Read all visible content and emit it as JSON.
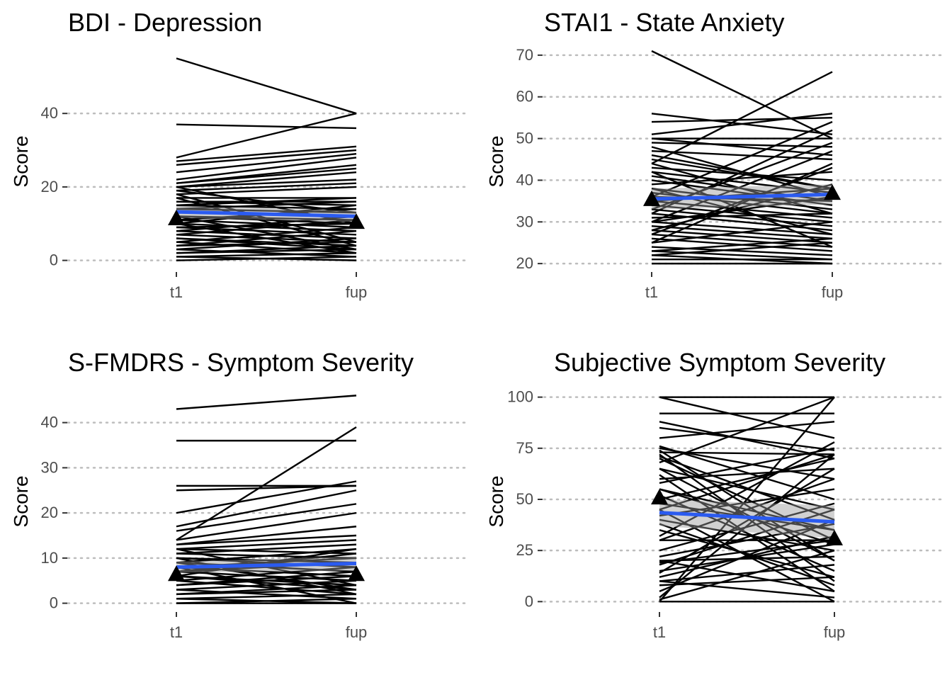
{
  "chart_data": [
    {
      "type": "line",
      "title": "BDI - Depression",
      "ylabel": "Score",
      "xlabel": "",
      "categories": [
        "t1",
        "fup"
      ],
      "ylim": [
        -2,
        57
      ],
      "yticks": [
        0,
        20,
        40
      ],
      "grid": "horizontal dotted",
      "subjects": [
        [
          55,
          40
        ],
        [
          37,
          36
        ],
        [
          28,
          40
        ],
        [
          27,
          31
        ],
        [
          26,
          30
        ],
        [
          24,
          29
        ],
        [
          22,
          28
        ],
        [
          21,
          26
        ],
        [
          21,
          25
        ],
        [
          20,
          24
        ],
        [
          20,
          22
        ],
        [
          19,
          21
        ],
        [
          18,
          20
        ],
        [
          17,
          17
        ],
        [
          16,
          16
        ],
        [
          16,
          15
        ],
        [
          15,
          17
        ],
        [
          15,
          14
        ],
        [
          14,
          16
        ],
        [
          14,
          13
        ],
        [
          13,
          12
        ],
        [
          12,
          11
        ],
        [
          12,
          10
        ],
        [
          11,
          9
        ],
        [
          10,
          15
        ],
        [
          10,
          8
        ],
        [
          9,
          7
        ],
        [
          9,
          10
        ],
        [
          8,
          6
        ],
        [
          8,
          12
        ],
        [
          7,
          5
        ],
        [
          7,
          11
        ],
        [
          6,
          4
        ],
        [
          6,
          3
        ],
        [
          5,
          9
        ],
        [
          5,
          2
        ],
        [
          4,
          8
        ],
        [
          4,
          5
        ],
        [
          3,
          1
        ],
        [
          3,
          6
        ],
        [
          2,
          3
        ],
        [
          2,
          4
        ],
        [
          1,
          2
        ],
        [
          1,
          0
        ],
        [
          0,
          1
        ],
        [
          20,
          10
        ],
        [
          18,
          5
        ],
        [
          12,
          3
        ],
        [
          11,
          14
        ],
        [
          10,
          2
        ],
        [
          17,
          4
        ],
        [
          19,
          13
        ]
      ],
      "trend": [
        13.2,
        12.0
      ],
      "ci": [
        [
          11.6,
          14.8
        ],
        [
          10.5,
          13.5
        ]
      ],
      "means": [
        11.5,
        10.5
      ]
    },
    {
      "type": "line",
      "title": "STAI1 - State Anxiety",
      "ylabel": "Score",
      "xlabel": "",
      "categories": [
        "t1",
        "fup"
      ],
      "ylim": [
        19,
        71
      ],
      "yticks": [
        20,
        30,
        40,
        50,
        60,
        70
      ],
      "grid": "horizontal dotted",
      "subjects": [
        [
          71,
          50
        ],
        [
          56,
          51
        ],
        [
          54,
          55
        ],
        [
          51,
          56
        ],
        [
          50,
          50
        ],
        [
          50,
          46
        ],
        [
          49,
          48
        ],
        [
          48,
          36
        ],
        [
          47,
          45
        ],
        [
          46,
          38
        ],
        [
          45,
          38
        ],
        [
          44,
          66
        ],
        [
          43,
          40
        ],
        [
          42,
          37
        ],
        [
          41,
          35
        ],
        [
          40,
          34
        ],
        [
          39,
          42
        ],
        [
          38,
          33
        ],
        [
          37,
          32
        ],
        [
          36,
          35
        ],
        [
          35,
          31
        ],
        [
          34,
          30
        ],
        [
          33,
          29
        ],
        [
          32,
          28
        ],
        [
          31,
          32
        ],
        [
          30,
          27
        ],
        [
          30,
          36
        ],
        [
          29,
          26
        ],
        [
          28,
          25
        ],
        [
          28,
          39
        ],
        [
          27,
          24
        ],
        [
          26,
          23
        ],
        [
          25,
          30
        ],
        [
          24,
          22
        ],
        [
          23,
          21
        ],
        [
          23,
          26
        ],
        [
          22,
          20
        ],
        [
          22,
          25
        ],
        [
          21,
          21
        ],
        [
          20,
          20
        ],
        [
          36,
          54
        ],
        [
          32,
          52
        ],
        [
          30,
          47
        ],
        [
          27,
          43
        ],
        [
          25,
          44
        ],
        [
          38,
          27
        ],
        [
          42,
          24
        ],
        [
          44,
          32
        ],
        [
          33,
          49
        ],
        [
          35,
          38
        ]
      ],
      "trend": [
        35.5,
        36.6
      ],
      "ci": [
        [
          33.0,
          38.0
        ],
        [
          34.2,
          39.0
        ]
      ],
      "means": [
        35.5,
        37
      ]
    },
    {
      "type": "line",
      "title": "S-FMDRS - Symptom Severity",
      "ylabel": "Score",
      "xlabel": "",
      "categories": [
        "t1",
        "fup"
      ],
      "ylim": [
        -1,
        47
      ],
      "yticks": [
        0,
        10,
        20,
        30,
        40
      ],
      "grid": "horizontal dotted",
      "subjects": [
        [
          43,
          46
        ],
        [
          36,
          36
        ],
        [
          26,
          26
        ],
        [
          25,
          26
        ],
        [
          20,
          27
        ],
        [
          17,
          25
        ],
        [
          16,
          22
        ],
        [
          14,
          39
        ],
        [
          14,
          20
        ],
        [
          13,
          17
        ],
        [
          13,
          15
        ],
        [
          12,
          14
        ],
        [
          12,
          11
        ],
        [
          11,
          10
        ],
        [
          11,
          13
        ],
        [
          10,
          9
        ],
        [
          10,
          8
        ],
        [
          9,
          12
        ],
        [
          9,
          7
        ],
        [
          8,
          6
        ],
        [
          8,
          10
        ],
        [
          7,
          5
        ],
        [
          7,
          9
        ],
        [
          6,
          4
        ],
        [
          6,
          3
        ],
        [
          5,
          8
        ],
        [
          5,
          2
        ],
        [
          4,
          6
        ],
        [
          3,
          5
        ],
        [
          3,
          1
        ],
        [
          2,
          4
        ],
        [
          2,
          3
        ],
        [
          1,
          2
        ],
        [
          1,
          0
        ],
        [
          0,
          1
        ],
        [
          0,
          0
        ],
        [
          12,
          4
        ],
        [
          10,
          2
        ],
        [
          8,
          0
        ],
        [
          7,
          11
        ],
        [
          6,
          12
        ],
        [
          9,
          3
        ],
        [
          4,
          7
        ]
      ],
      "trend": [
        8.0,
        8.8
      ],
      "ci": [
        [
          6.8,
          9.2
        ],
        [
          7.2,
          10.4
        ]
      ],
      "means": [
        6.5,
        6.5
      ]
    },
    {
      "type": "line",
      "title": "Subjective Symptom Severity",
      "ylabel": "Score",
      "xlabel": "",
      "categories": [
        "t1",
        "fup"
      ],
      "ylim": [
        -3,
        103
      ],
      "yticks": [
        0,
        25,
        50,
        75,
        100
      ],
      "grid": "horizontal dotted",
      "subjects": [
        [
          100,
          100
        ],
        [
          100,
          80
        ],
        [
          92,
          92
        ],
        [
          88,
          70
        ],
        [
          85,
          74
        ],
        [
          80,
          88
        ],
        [
          76,
          50
        ],
        [
          75,
          60
        ],
        [
          74,
          20
        ],
        [
          73,
          72
        ],
        [
          72,
          10
        ],
        [
          71,
          40
        ],
        [
          70,
          30
        ],
        [
          68,
          100
        ],
        [
          65,
          45
        ],
        [
          62,
          5
        ],
        [
          60,
          65
        ],
        [
          58,
          75
        ],
        [
          55,
          28
        ],
        [
          52,
          15
        ],
        [
          50,
          70
        ],
        [
          48,
          35
        ],
        [
          45,
          0
        ],
        [
          42,
          55
        ],
        [
          40,
          25
        ],
        [
          38,
          8
        ],
        [
          35,
          12
        ],
        [
          32,
          78
        ],
        [
          30,
          60
        ],
        [
          25,
          48
        ],
        [
          22,
          38
        ],
        [
          20,
          22
        ],
        [
          20,
          5
        ],
        [
          19,
          30
        ],
        [
          18,
          45
        ],
        [
          15,
          28
        ],
        [
          14,
          65
        ],
        [
          12,
          32
        ],
        [
          10,
          18
        ],
        [
          10,
          2
        ],
        [
          8,
          12
        ],
        [
          5,
          40
        ],
        [
          2,
          72
        ],
        [
          0,
          100
        ],
        [
          0,
          0
        ],
        [
          1,
          25
        ],
        [
          30,
          30
        ],
        [
          65,
          20
        ],
        [
          45,
          72
        ],
        [
          55,
          35
        ]
      ],
      "trend": [
        43.5,
        39.0
      ],
      "ci": [
        [
          37.0,
          50.0
        ],
        [
          31.0,
          47.0
        ]
      ],
      "means": [
        51,
        31
      ]
    }
  ]
}
